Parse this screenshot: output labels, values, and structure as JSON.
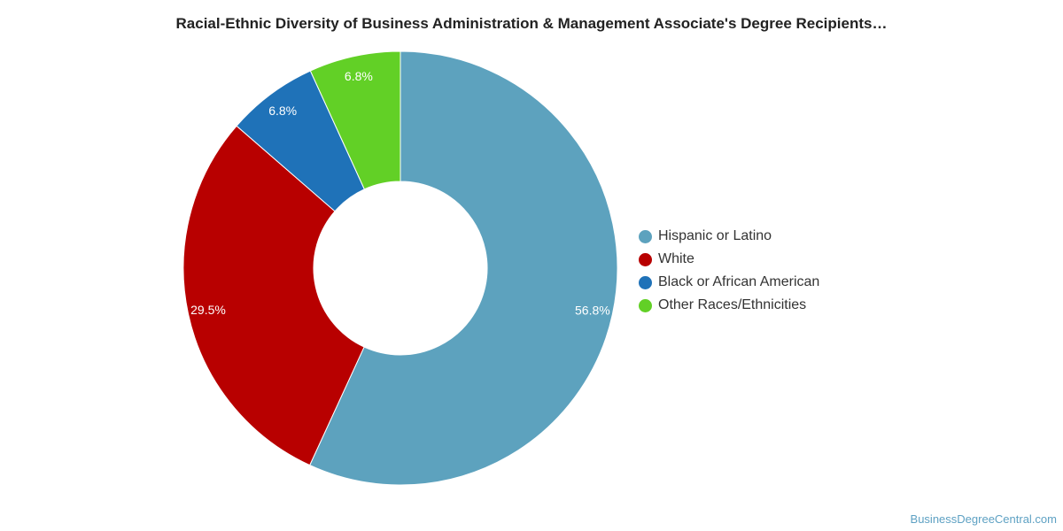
{
  "chart_data": {
    "type": "pie",
    "title": "Racial-Ethnic Diversity of Business Administration & Management Associate's Degree Recipients…",
    "categories": [
      "Hispanic or Latino",
      "White",
      "Black or African American",
      "Other Races/Ethnicities"
    ],
    "values": [
      56.8,
      29.5,
      6.8,
      6.8
    ],
    "value_labels": [
      "56.8%",
      "29.5%",
      "6.8%",
      "6.8%"
    ],
    "colors": [
      "#5da2be",
      "#b80000",
      "#1f72b8",
      "#62d026"
    ],
    "donut": true,
    "legend_position": "right"
  },
  "watermark": "BusinessDegreeCentral.com"
}
